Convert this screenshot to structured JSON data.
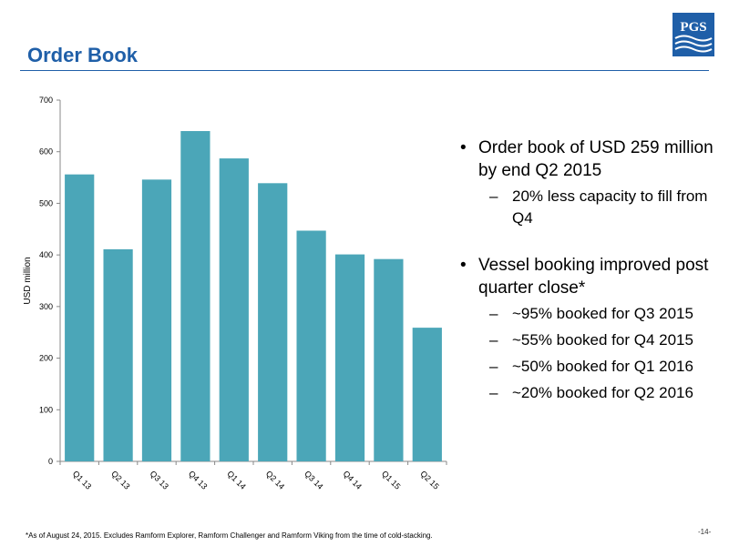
{
  "title": "Order Book",
  "logo": {
    "text": "PGS",
    "color": "#1f5fa8"
  },
  "chart_data": {
    "type": "bar",
    "ylabel": "USD million",
    "ylim": [
      0,
      700
    ],
    "yticks": [
      0,
      100,
      200,
      300,
      400,
      500,
      600,
      700
    ],
    "categories": [
      "Q1 13",
      "Q2 13",
      "Q3 13",
      "Q4 13",
      "Q1 14",
      "Q2 14",
      "Q3 14",
      "Q4 14",
      "Q1 15",
      "Q2 15"
    ],
    "values": [
      556,
      411,
      546,
      640,
      587,
      539,
      447,
      401,
      392,
      259
    ],
    "color": "#4ba6b8"
  },
  "bullets": [
    {
      "text": "Order book of USD 259 million by end Q2 2015",
      "sub": [
        "20% less capacity to fill from Q4"
      ]
    },
    {
      "text": "Vessel booking improved post quarter close*",
      "sub": [
        "~95% booked for Q3 2015",
        "~55% booked for Q4 2015",
        "~50% booked for Q1 2016",
        "~20% booked for Q2 2016"
      ]
    }
  ],
  "bullet_marks": {
    "dot": "•",
    "dash": "–"
  },
  "footnote": "*As of August 24, 2015. Excludes Ramform Explorer, Ramform Challenger and Ramform Viking from the time of cold-stacking.",
  "page_number": "-14-"
}
